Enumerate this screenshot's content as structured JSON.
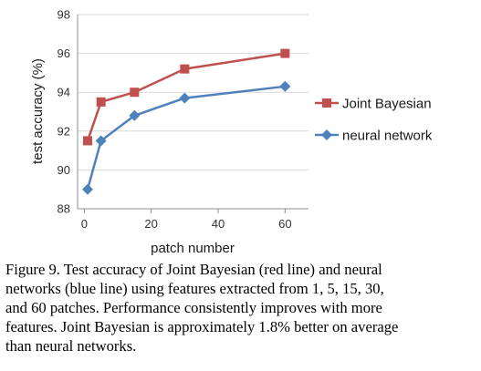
{
  "chart_data": {
    "type": "line",
    "title": "",
    "xlabel": "patch number",
    "ylabel": "test accuracy (%)",
    "xlim": [
      -2,
      67
    ],
    "ylim": [
      88,
      98
    ],
    "x_ticks": [
      0,
      20,
      40,
      60
    ],
    "y_ticks": [
      88,
      90,
      92,
      94,
      96,
      98
    ],
    "grid": "horizontal gridlines at y ticks",
    "legend_position": "right",
    "series": [
      {
        "name": "Joint Bayesian",
        "color": "#C0504D",
        "marker": "square",
        "x": [
          1,
          5,
          15,
          30,
          60
        ],
        "values": [
          91.5,
          93.5,
          94.0,
          95.2,
          96.0
        ]
      },
      {
        "name": "neural network",
        "color": "#4F81BD",
        "marker": "diamond",
        "x": [
          1,
          5,
          15,
          30,
          60
        ],
        "values": [
          89.0,
          91.5,
          92.8,
          93.7,
          94.3
        ]
      }
    ]
  },
  "caption": "Figure 9. Test accuracy of Joint Bayesian (red line) and neural\nnetworks (blue line) using features extracted from 1, 5, 15, 30,\nand 60 patches.  Performance consistently improves with more\nfeatures. Joint Bayesian is approximately 1.8% better on average\nthan neural networks."
}
